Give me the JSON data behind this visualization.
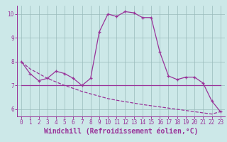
{
  "xlabel": "Windchill (Refroidissement éolien,°C)",
  "bg_color": "#cce8e8",
  "line_color": "#993399",
  "grid_color": "#99bbbb",
  "x": [
    0,
    1,
    2,
    3,
    4,
    5,
    6,
    7,
    8,
    9,
    10,
    11,
    12,
    13,
    14,
    15,
    16,
    17,
    18,
    19,
    20,
    21,
    22,
    23
  ],
  "y_main": [
    8.0,
    7.5,
    7.2,
    7.3,
    7.6,
    7.5,
    7.3,
    7.0,
    7.3,
    9.25,
    10.0,
    9.9,
    10.1,
    10.05,
    9.85,
    9.85,
    8.4,
    7.4,
    7.25,
    7.35,
    7.35,
    7.1,
    6.35,
    5.9
  ],
  "y_flat": [
    7.0,
    7.0,
    7.0,
    7.0,
    7.0,
    7.0,
    7.0,
    7.0,
    7.0,
    7.0,
    7.0,
    7.0,
    7.0,
    7.0,
    7.0,
    7.0,
    7.0,
    7.0,
    7.0,
    7.0,
    7.0,
    7.0,
    7.0,
    7.0
  ],
  "y_dashed": [
    8.0,
    7.7,
    7.5,
    7.3,
    7.15,
    7.0,
    6.88,
    6.75,
    6.65,
    6.55,
    6.45,
    6.38,
    6.32,
    6.26,
    6.2,
    6.15,
    6.1,
    6.05,
    6.0,
    5.95,
    5.9,
    5.85,
    5.8,
    5.9
  ],
  "ylim": [
    5.7,
    10.35
  ],
  "yticks": [
    6,
    7,
    8,
    9,
    10
  ],
  "xticks": [
    0,
    1,
    2,
    3,
    4,
    5,
    6,
    7,
    8,
    9,
    10,
    11,
    12,
    13,
    14,
    15,
    16,
    17,
    18,
    19,
    20,
    21,
    22,
    23
  ],
  "tick_label_fontsize": 5.5,
  "xlabel_fontsize": 7.0
}
